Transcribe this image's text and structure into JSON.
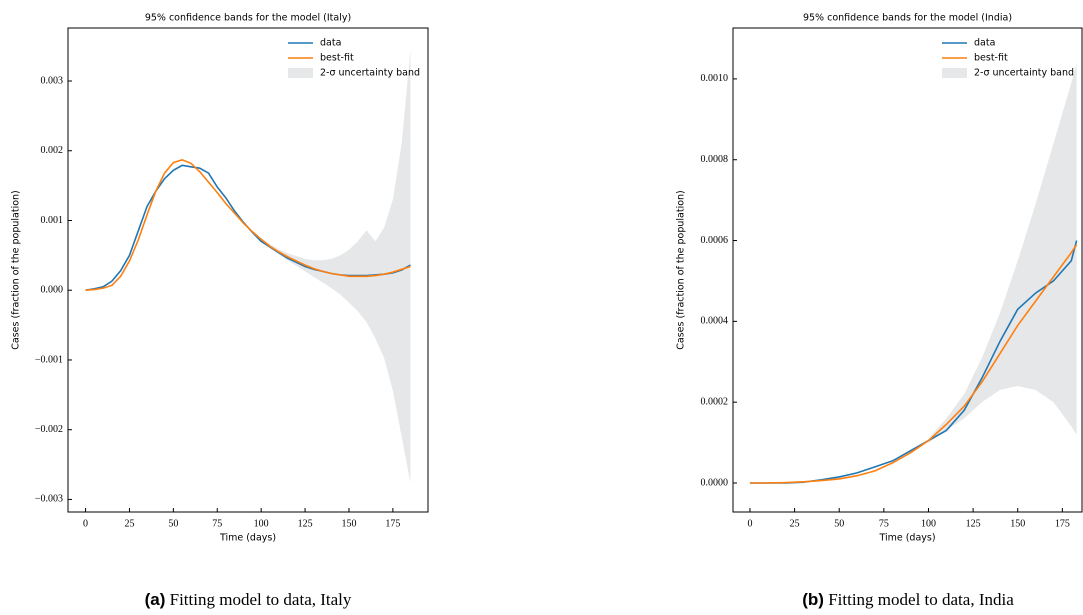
{
  "chart_data": [
    {
      "type": "line",
      "title": "95% confidence bands for the model (Italy)",
      "xlabel": "Time (days)",
      "ylabel": "Cases (fraction of the population)",
      "caption": {
        "label": "(a)",
        "text": "Fitting model to data, Italy"
      },
      "legend": "upper right",
      "x": [
        0,
        5,
        10,
        15,
        20,
        25,
        30,
        35,
        40,
        45,
        50,
        55,
        60,
        65,
        70,
        75,
        80,
        85,
        90,
        95,
        100,
        105,
        110,
        115,
        120,
        125,
        130,
        135,
        140,
        145,
        150,
        155,
        160,
        165,
        170,
        175,
        180,
        185
      ],
      "series": [
        {
          "name": "data",
          "color": "#1f77b4",
          "values": [
            0,
            2e-05,
            5e-05,
            0.00013,
            0.00028,
            0.0005,
            0.00085,
            0.0012,
            0.00142,
            0.0016,
            0.00172,
            0.00179,
            0.00177,
            0.00175,
            0.00168,
            0.00148,
            0.00132,
            0.00113,
            0.00097,
            0.00083,
            0.0007,
            0.00062,
            0.00054,
            0.00046,
            0.0004,
            0.00034,
            0.0003,
            0.00027,
            0.00024,
            0.00022,
            0.00021,
            0.00021,
            0.00021,
            0.00022,
            0.00023,
            0.00025,
            0.00029,
            0.00036
          ]
        },
        {
          "name": "best-fit",
          "color": "#ff7f0e",
          "values": [
            0,
            1e-05,
            3e-05,
            7e-05,
            0.0002,
            0.00042,
            0.00072,
            0.00108,
            0.00142,
            0.00168,
            0.00183,
            0.00187,
            0.00182,
            0.0017,
            0.00155,
            0.0014,
            0.00124,
            0.0011,
            0.00096,
            0.00084,
            0.00073,
            0.00063,
            0.00055,
            0.00048,
            0.00042,
            0.00036,
            0.00031,
            0.00027,
            0.00024,
            0.00022,
            0.0002,
            0.0002,
            0.0002,
            0.00021,
            0.00023,
            0.00026,
            0.0003,
            0.00034
          ]
        }
      ],
      "band": {
        "name": "2-σ uncertainty band",
        "color": "#e6e7e8",
        "x": [
          100,
          105,
          110,
          115,
          120,
          125,
          130,
          135,
          140,
          145,
          150,
          155,
          160,
          165,
          170,
          175,
          180,
          185
        ],
        "upper": [
          0.00075,
          0.00066,
          0.00059,
          0.00053,
          0.00049,
          0.00045,
          0.00043,
          0.00043,
          0.00045,
          0.0005,
          0.00058,
          0.0007,
          0.00086,
          0.0007,
          0.0009,
          0.0013,
          0.0021,
          0.00344
        ],
        "lower": [
          0.00071,
          0.0006,
          0.00051,
          0.00043,
          0.00035,
          0.00027,
          0.00019,
          0.00011,
          3e-05,
          -6e-05,
          -0.00018,
          -0.0003,
          -0.00046,
          -0.00069,
          -0.00097,
          -0.00144,
          -0.0021,
          -0.00276
        ]
      },
      "xlim": [
        -10,
        195
      ],
      "xticks": [
        0,
        25,
        50,
        75,
        100,
        125,
        150,
        175
      ],
      "ylim": [
        -0.00318,
        0.00376
      ],
      "yticks": [
        {
          "value": -0.003,
          "label": "−0.003"
        },
        {
          "value": -0.002,
          "label": "−0.002"
        },
        {
          "value": -0.001,
          "label": "−0.001"
        },
        {
          "value": 0,
          "label": "0.000"
        },
        {
          "value": 0.001,
          "label": "0.001"
        },
        {
          "value": 0.002,
          "label": "0.002"
        },
        {
          "value": 0.003,
          "label": "0.003"
        }
      ]
    },
    {
      "type": "line",
      "title": "95% confidence bands for the model (India)",
      "xlabel": "Time (days)",
      "ylabel": "Cases (fraction of the population)",
      "caption": {
        "label": "(b)",
        "text": "Fitting model to data, India"
      },
      "legend": "upper right",
      "x": [
        0,
        10,
        20,
        30,
        40,
        50,
        60,
        70,
        80,
        90,
        100,
        110,
        120,
        130,
        140,
        150,
        160,
        170,
        180,
        183
      ],
      "series": [
        {
          "name": "data",
          "color": "#1f77b4",
          "values": [
            0,
            0,
            0,
            2e-06,
            8e-06,
            1.5e-05,
            2.5e-05,
            4e-05,
            5.5e-05,
            8e-05,
            0.000105,
            0.00013,
            0.00018,
            0.00026,
            0.00035,
            0.00043,
            0.00047,
            0.0005,
            0.00055,
            0.0006
          ]
        },
        {
          "name": "best-fit",
          "color": "#ff7f0e",
          "values": [
            0,
            0,
            1e-06,
            3e-06,
            6e-06,
            1e-05,
            1.8e-05,
            3e-05,
            5e-05,
            7.5e-05,
            0.000105,
            0.000145,
            0.00019,
            0.00025,
            0.00032,
            0.00039,
            0.00045,
            0.00051,
            0.00057,
            0.00059
          ]
        }
      ],
      "band": {
        "name": "2-σ uncertainty band",
        "color": "#e6e7e8",
        "x": [
          100,
          110,
          120,
          130,
          140,
          150,
          160,
          170,
          180,
          183
        ],
        "upper": [
          0.00011,
          0.00016,
          0.00022,
          0.00031,
          0.00042,
          0.00055,
          0.00069,
          0.00084,
          0.00099,
          0.00104
        ],
        "lower": [
          0.0001,
          0.00013,
          0.00016,
          0.0002,
          0.00023,
          0.00024,
          0.00023,
          0.0002,
          0.00014,
          0.00012
        ]
      },
      "xlim": [
        -9.5,
        186
      ],
      "xticks": [
        0,
        25,
        50,
        75,
        100,
        125,
        150,
        175
      ],
      "ylim": [
        -7.18e-05,
        0.001126
      ],
      "yticks": [
        {
          "value": 0,
          "label": "0.0000"
        },
        {
          "value": 0.0002,
          "label": "0.0002"
        },
        {
          "value": 0.0004,
          "label": "0.0004"
        },
        {
          "value": 0.0006,
          "label": "0.0006"
        },
        {
          "value": 0.0008,
          "label": "0.0008"
        },
        {
          "value": 0.001,
          "label": "0.0010"
        }
      ]
    }
  ]
}
